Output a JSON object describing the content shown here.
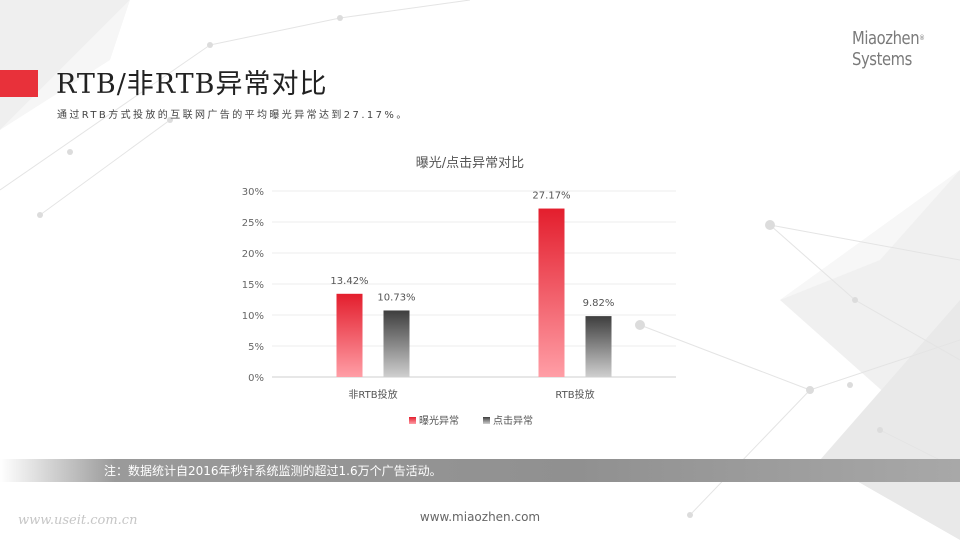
{
  "header": {
    "title": "RTB/非RTB异常对比",
    "subtitle": "通过RTB方式投放的互联网广告的平均曝光异常达到27.17%。"
  },
  "logo": {
    "line1": "Miaozhen",
    "reg": "®",
    "line2": "Systems"
  },
  "footer": {
    "note": "注：数据统计自2016年秒针系统监测的超过1.6万个广告活动。",
    "website": "www.miaozhen.com",
    "watermark": "www.useit.com.cn"
  },
  "colors": {
    "accent": "#e8313a",
    "series_exposure": "#e8313a",
    "series_click": "#4a4a4a"
  },
  "chart_data": {
    "type": "bar",
    "title": "曝光/点击异常对比",
    "categories": [
      "非RTB投放",
      "RTB投放"
    ],
    "series": [
      {
        "name": "曝光异常",
        "values": [
          13.42,
          27.17
        ],
        "labels": [
          "13.42%",
          "27.17%"
        ]
      },
      {
        "name": "点击异常",
        "values": [
          10.73,
          9.82
        ],
        "labels": [
          "10.73%",
          "9.82%"
        ]
      }
    ],
    "yticks": [
      "0%",
      "5%",
      "10%",
      "15%",
      "20%",
      "25%",
      "30%"
    ],
    "ylim": [
      0,
      30
    ],
    "grid": true,
    "legend": "bottom"
  }
}
